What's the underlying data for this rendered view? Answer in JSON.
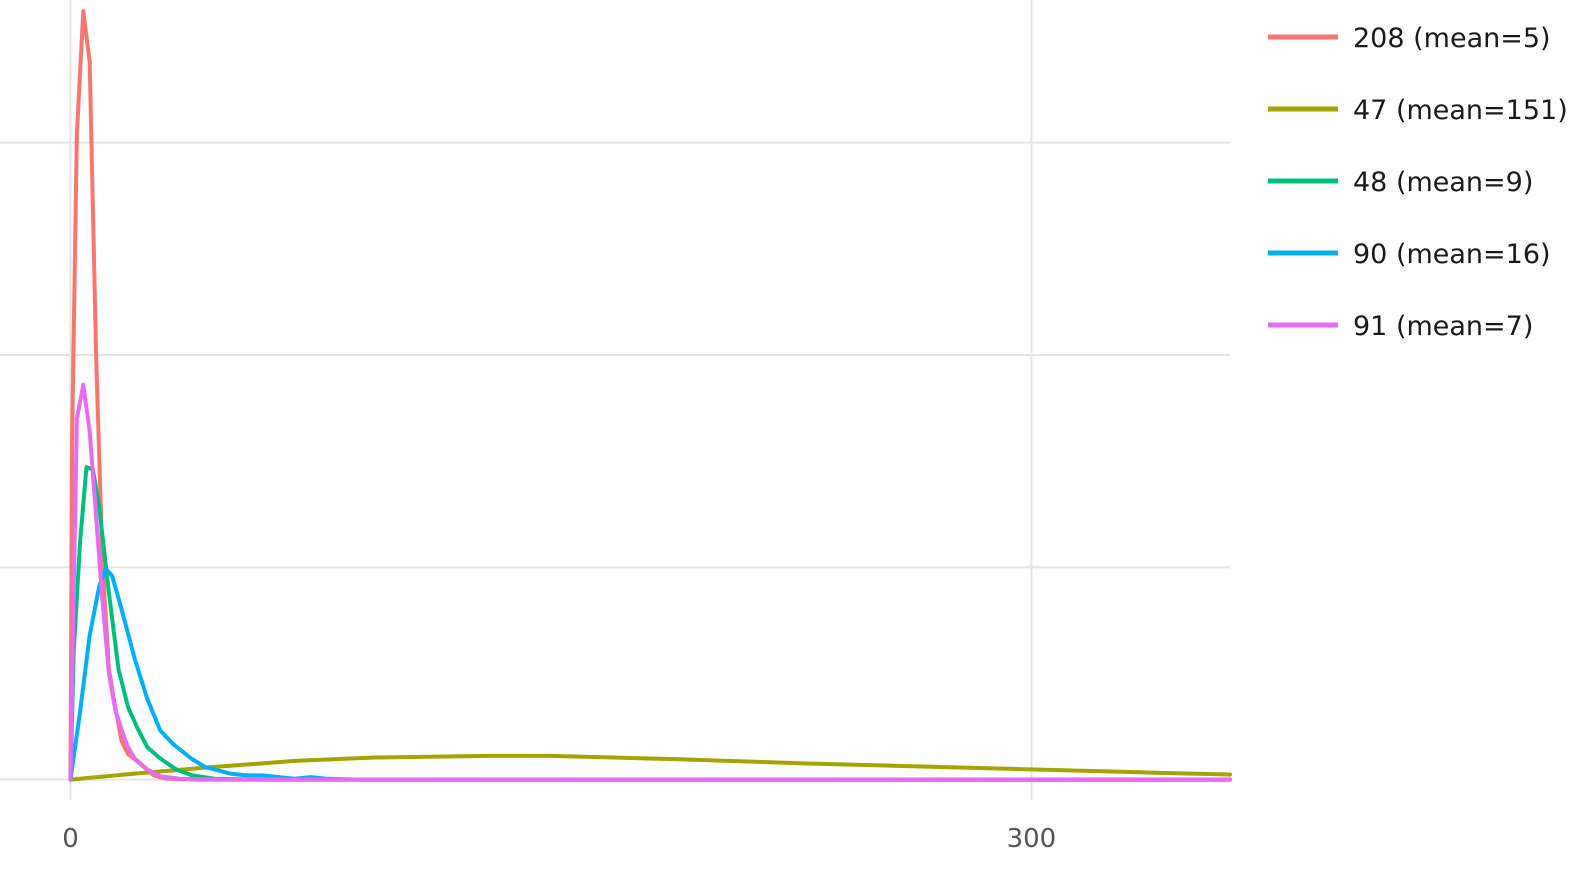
{
  "chart_data": {
    "type": "line",
    "title": "",
    "xlabel": "",
    "ylabel": "",
    "xlim": [
      -22,
      362
    ],
    "ylim": [
      -0.0024,
      0.0918
    ],
    "x_ticks": [
      {
        "value": 0,
        "label": "0"
      },
      {
        "value": 300,
        "label": "300"
      }
    ],
    "y_gridlines": [
      0,
      0.025,
      0.05,
      0.075
    ],
    "x_gridlines": [
      300
    ],
    "grid": true,
    "legend": "right",
    "series": [
      {
        "name": "208 (mean=5)",
        "color": "#F8766D",
        "points": [
          [
            0,
            0
          ],
          [
            0.5,
            0.04
          ],
          [
            2,
            0.076
          ],
          [
            4,
            0.0905
          ],
          [
            6,
            0.0845
          ],
          [
            8,
            0.05
          ],
          [
            10,
            0.0255
          ],
          [
            12,
            0.013
          ],
          [
            14,
            0.0085
          ],
          [
            16,
            0.0045
          ],
          [
            18,
            0.003
          ],
          [
            22,
            0.0018
          ],
          [
            26,
            0.0005
          ],
          [
            30,
            0.0001
          ],
          [
            40,
            0
          ],
          [
            362,
            0
          ]
        ]
      },
      {
        "name": "47 (mean=151)",
        "color": "#A3A500",
        "points": [
          [
            0,
            0
          ],
          [
            20,
            0.0007
          ],
          [
            45,
            0.0015
          ],
          [
            70,
            0.0022
          ],
          [
            95,
            0.0026
          ],
          [
            130,
            0.0028
          ],
          [
            150,
            0.0028
          ],
          [
            190,
            0.0024
          ],
          [
            230,
            0.0019
          ],
          [
            270,
            0.0015
          ],
          [
            310,
            0.0011
          ],
          [
            340,
            0.0008
          ],
          [
            362,
            0.0006
          ]
        ]
      },
      {
        "name": "48 (mean=9)",
        "color": "#00BF7D",
        "points": [
          [
            0,
            0
          ],
          [
            1,
            0.015
          ],
          [
            3,
            0.028
          ],
          [
            5,
            0.0368
          ],
          [
            7,
            0.0365
          ],
          [
            9,
            0.032
          ],
          [
            12,
            0.022
          ],
          [
            15,
            0.013
          ],
          [
            18,
            0.0085
          ],
          [
            21,
            0.006
          ],
          [
            24,
            0.0038
          ],
          [
            28,
            0.0025
          ],
          [
            33,
            0.0012
          ],
          [
            38,
            0.0005
          ],
          [
            45,
            0.0001
          ],
          [
            60,
            0
          ],
          [
            362,
            0
          ]
        ]
      },
      {
        "name": "90 (mean=16)",
        "color": "#00B0F6",
        "points": [
          [
            0,
            0
          ],
          [
            3,
            0.008
          ],
          [
            6,
            0.017
          ],
          [
            9,
            0.0228
          ],
          [
            11,
            0.0248
          ],
          [
            13,
            0.024
          ],
          [
            16,
            0.02
          ],
          [
            20,
            0.0143
          ],
          [
            24,
            0.0095
          ],
          [
            28,
            0.0058
          ],
          [
            32,
            0.0042
          ],
          [
            35,
            0.0033
          ],
          [
            38,
            0.0024
          ],
          [
            42,
            0.0015
          ],
          [
            46,
            0.0011
          ],
          [
            50,
            0.0007
          ],
          [
            55,
            0.0005
          ],
          [
            60,
            0.0005
          ],
          [
            65,
            0.0003
          ],
          [
            70,
            0.0001
          ],
          [
            75,
            0.0003
          ],
          [
            80,
            0.0001
          ],
          [
            90,
            0
          ],
          [
            362,
            0
          ]
        ]
      },
      {
        "name": "91 (mean=7)",
        "color": "#E76BF3",
        "points": [
          [
            0,
            0
          ],
          [
            1,
            0.022
          ],
          [
            2,
            0.0425
          ],
          [
            4,
            0.0465
          ],
          [
            6,
            0.041
          ],
          [
            8,
            0.031
          ],
          [
            10,
            0.021
          ],
          [
            12,
            0.0125
          ],
          [
            14,
            0.0082
          ],
          [
            16,
            0.0058
          ],
          [
            18,
            0.0038
          ],
          [
            20,
            0.0025
          ],
          [
            24,
            0.0012
          ],
          [
            28,
            0.0004
          ],
          [
            34,
            0.0001
          ],
          [
            45,
            0
          ],
          [
            362,
            0
          ]
        ]
      }
    ]
  }
}
